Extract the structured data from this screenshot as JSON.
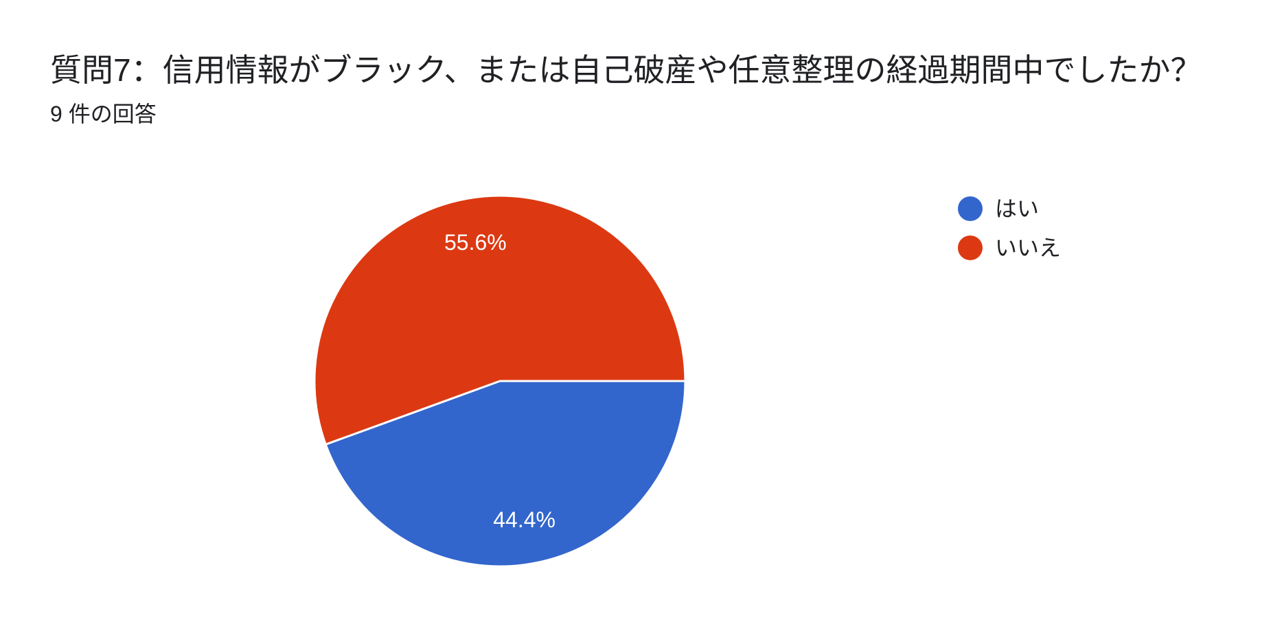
{
  "chart_data": {
    "type": "pie",
    "title": "質問7：信用情報がブラック、または自己破産や任意整理の経過期間中でしたか？",
    "subtitle": "9 件の回答",
    "categories": [
      "はい",
      "いいえ"
    ],
    "values": [
      4,
      5
    ],
    "percent_labels": [
      "44.4%",
      "55.6%"
    ],
    "colors": [
      "#3366cc",
      "#dc3912"
    ],
    "legend_position": "right"
  }
}
